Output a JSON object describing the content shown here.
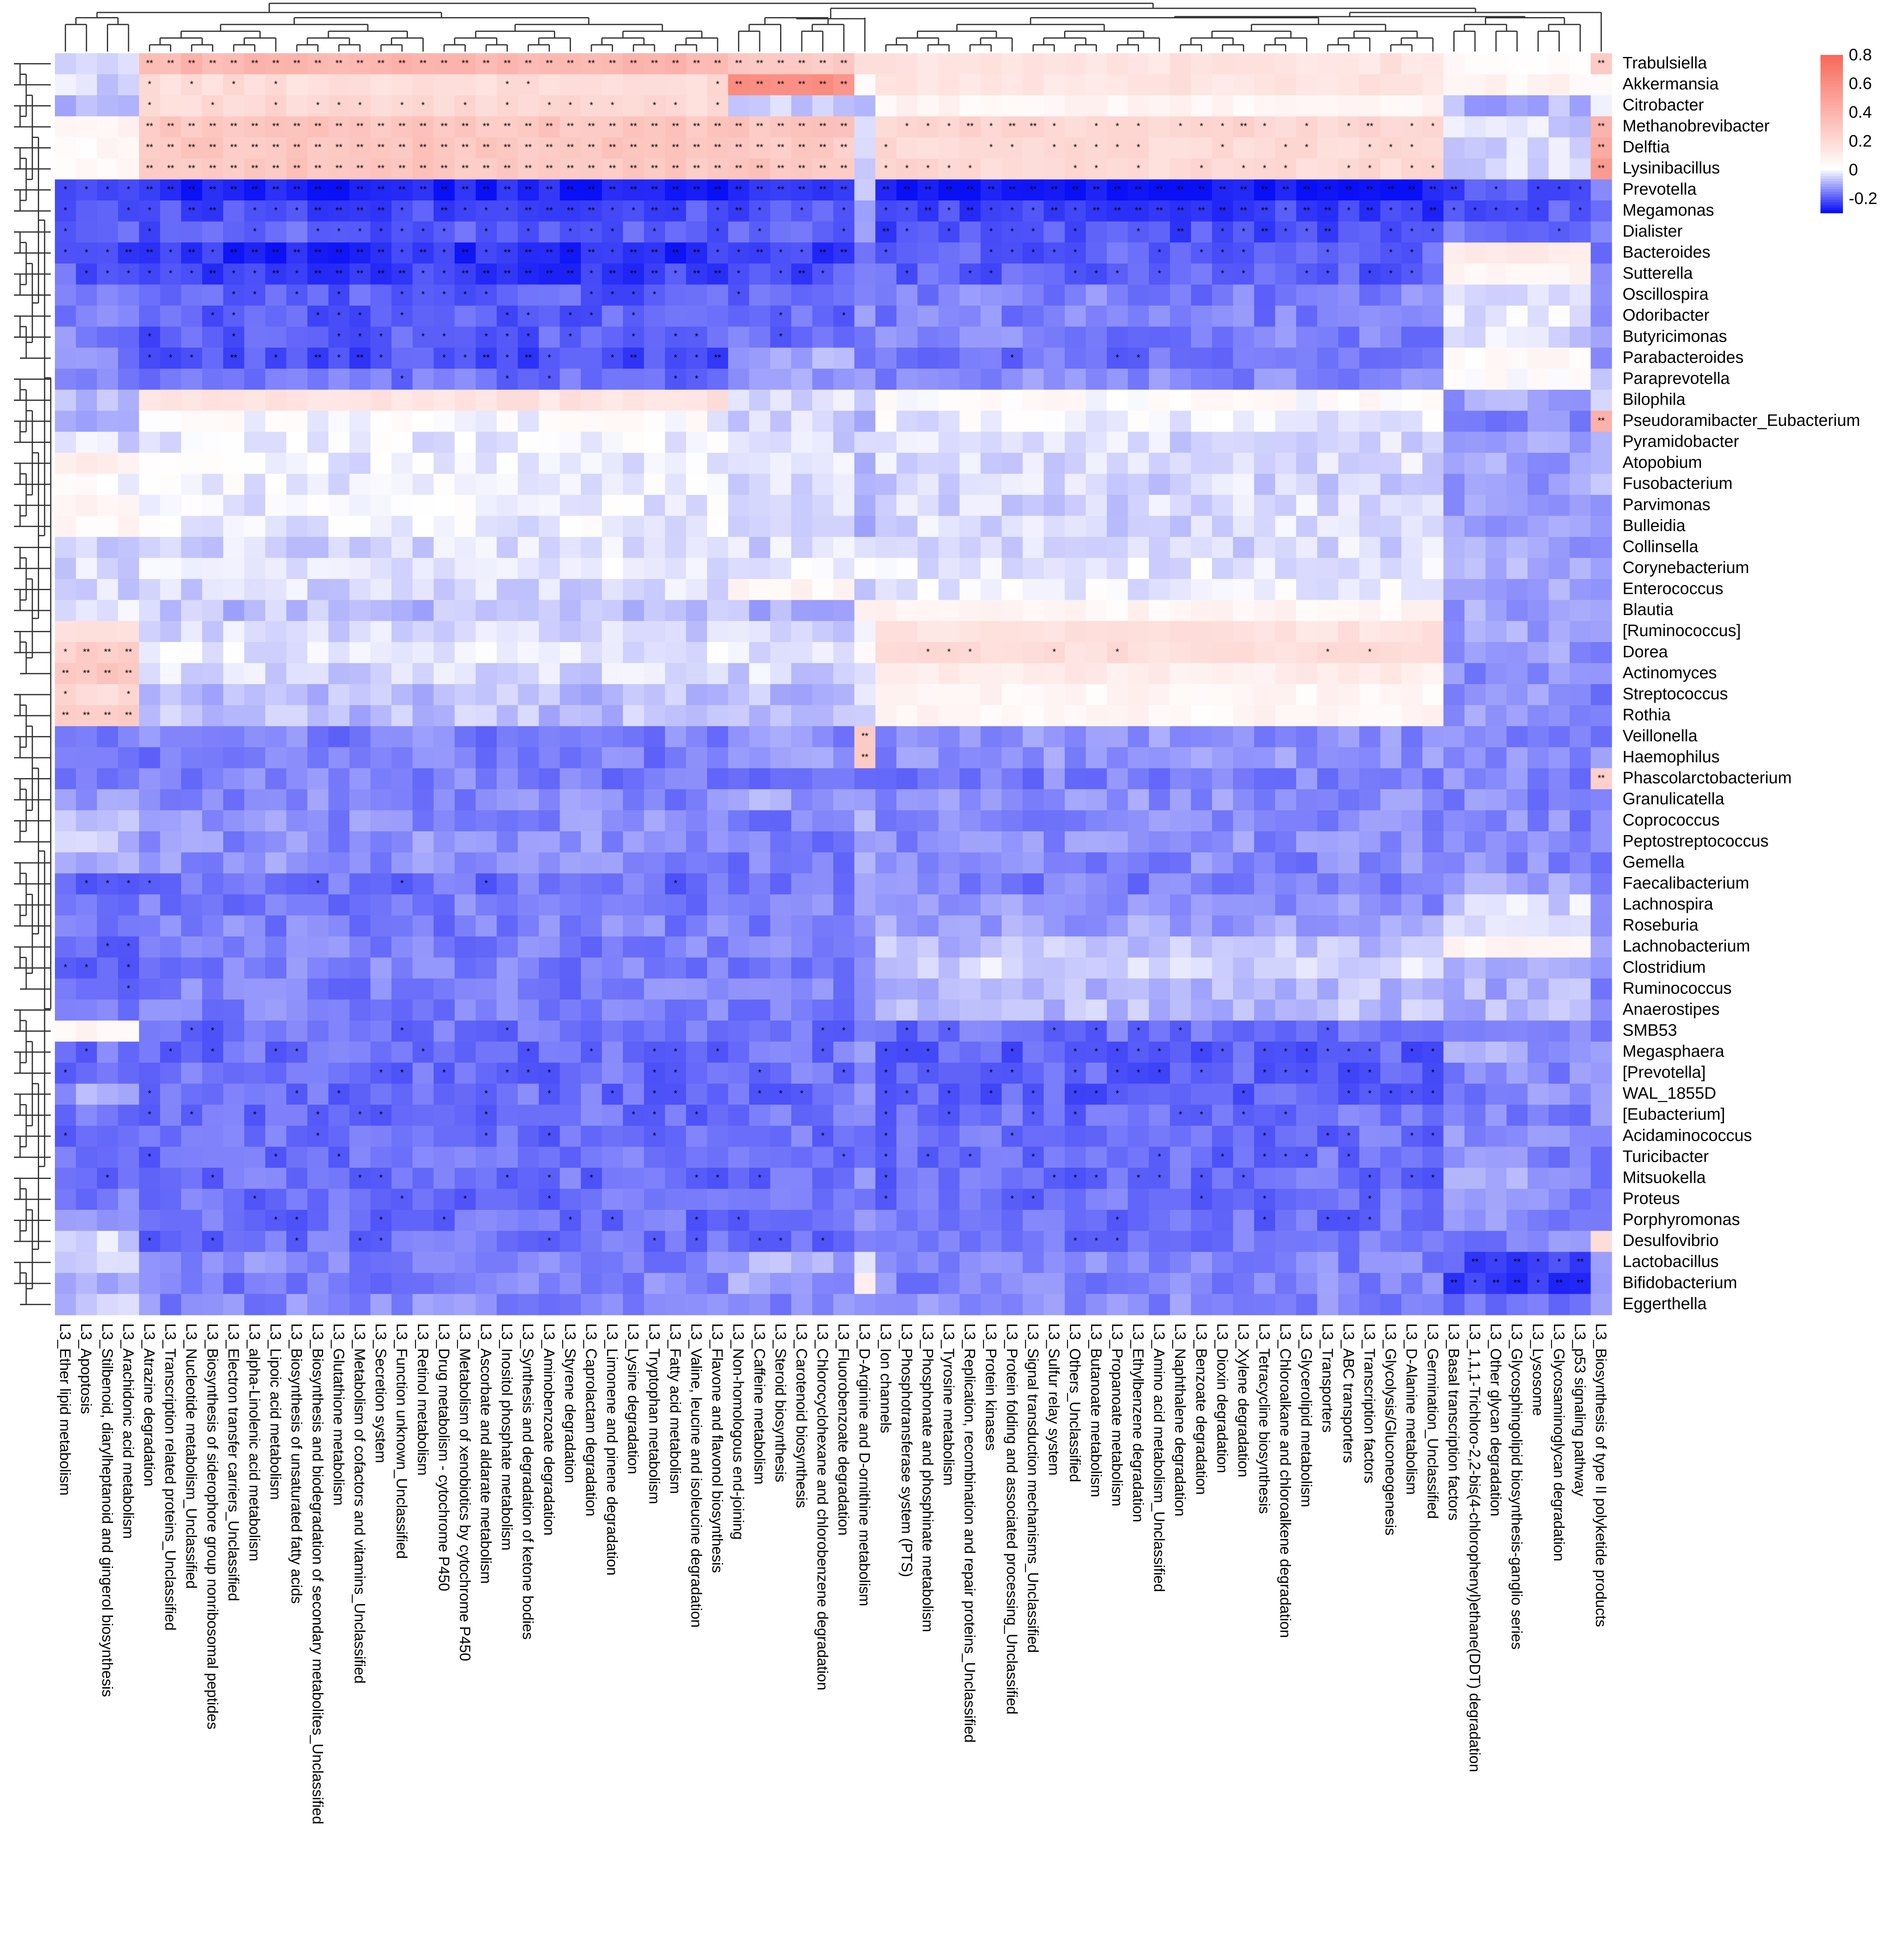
{
  "chart_data": {
    "type": "heatmap",
    "title": "",
    "xlabel": "",
    "ylabel": "",
    "rows": [
      "Trabulsiella",
      "Akkermansia",
      "Citrobacter",
      "Methanobrevibacter",
      "Delftia",
      "Lysinibacillus",
      "Prevotella",
      "Megamonas",
      "Dialister",
      "Bacteroides",
      "Sutterella",
      "Oscillospira",
      "Odoribacter",
      "Butyricimonas",
      "Parabacteroides",
      "Paraprevotella",
      "Bilophila",
      "Pseudoramibacter_Eubacterium",
      "Pyramidobacter",
      "Atopobium",
      "Fusobacterium",
      "Parvimonas",
      "Bulleidia",
      "Collinsella",
      "Corynebacterium",
      "Enterococcus",
      "Blautia",
      "[Ruminococcus]",
      "Dorea",
      "Actinomyces",
      "Streptococcus",
      "Rothia",
      "Veillonella",
      "Haemophilus",
      "Phascolarctobacterium",
      "Granulicatella",
      "Coprococcus",
      "Peptostreptococcus",
      "Gemella",
      "Faecalibacterium",
      "Lachnospira",
      "Roseburia",
      "Lachnobacterium",
      "Clostridium",
      "Ruminococcus",
      "Anaerostipes",
      "SMB53",
      "Megasphaera",
      "[Prevotella]",
      "WAL_1855D",
      "[Eubacterium]",
      "Acidaminococcus",
      "Turicibacter",
      "Mitsuokella",
      "Proteus",
      "Porphyromonas",
      "Desulfovibrio",
      "Lactobacillus",
      "Bifidobacterium",
      "Eggerthella"
    ],
    "columns": [
      "L3_Ether lipid metabolism",
      "L3_Apoptosis",
      "L3_Stilbenoid, diarylheptanoid and gingerol biosynthesis",
      "L3_Arachidonic acid metabolism",
      "L3_Atrazine degradation",
      "L3_Transcription related proteins_Unclassified",
      "L3_Nucleotide metabolism_Unclassified",
      "L3_Biosynthesis of siderophore group nonribosomal peptides",
      "L3_Electron transfer carriers_Unclassified",
      "L3_alpha-Linolenic acid metabolism",
      "L3_Lipoic acid metabolism",
      "L3_Biosynthesis of unsaturated fatty acids",
      "L3_Biosynthesis and biodegradation of secondary metabolites_Unclassified",
      "L3_Glutathione metabolism",
      "L3_Metabolism of cofactors and vitamins_Unclassified",
      "L3_Secretion system",
      "L3_Function unknown_Unclassified",
      "L3_Retinol metabolism",
      "L3_Drug metabolism - cytochrome P450",
      "L3_Metabolism of xenobiotics by cytochrome P450",
      "L3_Ascorbate and aldarate metabolism",
      "L3_Inositol phosphate metabolism",
      "L3_Synthesis and degradation of ketone bodies",
      "L3_Aminobenzoate degradation",
      "L3_Styrene degradation",
      "L3_Caprolactam degradation",
      "L3_Limonene and pinene degradation",
      "L3_Lysine degradation",
      "L3_Tryptophan metabolism",
      "L3_Fatty acid metabolism",
      "L3_Valine, leucine and isoleucine degradation",
      "L3_Flavone and flavonol biosynthesis",
      "L3_Non-homologous end-joining",
      "L3_Caffeine metabolism",
      "L3_Steroid biosynthesis",
      "L3_Carotenoid biosynthesis",
      "L3_Chlorocyclohexane and chlorobenzene degradation",
      "L3_Fluorobenzoate degradation",
      "L3_D-Arginine and D-ornithine metabolism",
      "L3_Ion channels",
      "L3_Phosphotransferase system (PTS)",
      "L3_Phosphonate and phosphinate metabolism",
      "L3_Tyrosine metabolism",
      "L3_Replication, recombination and repair proteins_Unclassified",
      "L3_Protein kinases",
      "L3_Protein folding and associated processing_Unclassified",
      "L3_Signal transduction mechanisms_Unclassified",
      "L3_Sulfur relay system",
      "L3_Others_Unclassified",
      "L3_Butanoate metabolism",
      "L3_Propanoate metabolism",
      "L3_Ethylbenzene degradation",
      "L3_Amino acid metabolism_Unclassified",
      "L3_Naphthalene degradation",
      "L3_Benzoate degradation",
      "L3_Dioxin degradation",
      "L3_Xylene degradation",
      "L3_Tetracycline biosynthesis",
      "L3_Chloroalkane and chloroalkene degradation",
      "L3_Glycerolipid metabolism",
      "L3_Transporters",
      "L3_ABC transporters",
      "L3_Transcription factors",
      "L3_Glycolysis/Gluconeogenesis",
      "L3_D-Alanine metabolism",
      "L3_Germination_Unclassified",
      "L3_Basal transcription factors",
      "L3_1,1,1-Trichloro-2,2-bis(4-chlorophenyl)ethane(DDT) degradation",
      "L3_Other glycan degradation",
      "L3_Glycosphingolipid biosynthesis-ganglio series",
      "L3_Lysosome",
      "L3_Glycosaminoglycan degradation",
      "L3_p53 signaling pathway",
      "L3_Biosynthesis of type II polyketide products"
    ],
    "column_blocks": [
      [
        0,
        3
      ],
      [
        4,
        31
      ],
      [
        32,
        37
      ],
      [
        38,
        38
      ],
      [
        39,
        65
      ],
      [
        66,
        72
      ],
      [
        73,
        73
      ]
    ],
    "block_profiles": [
      {
        "name": "Trabulsiella",
        "values": [
          -0.02,
          0.38,
          0.28,
          0.2,
          0.15,
          0.02,
          0.3
        ]
      },
      {
        "name": "Akkermansia",
        "values": [
          -0.05,
          0.18,
          0.6,
          0.05,
          0.15,
          0.05,
          0.05
        ]
      },
      {
        "name": "Citrobacter",
        "values": [
          -0.08,
          0.2,
          -0.05,
          -0.1,
          0.05,
          -0.1,
          -0.05
        ]
      },
      {
        "name": "Methanobrevibacter",
        "values": [
          0.05,
          0.3,
          0.3,
          -0.05,
          0.22,
          -0.05,
          0.4
        ]
      },
      {
        "name": "Delftia",
        "values": [
          0.03,
          0.3,
          0.28,
          -0.05,
          0.2,
          -0.05,
          0.45
        ]
      },
      {
        "name": "Lysinibacillus",
        "values": [
          0.02,
          0.3,
          0.3,
          -0.05,
          0.2,
          -0.05,
          0.5
        ]
      },
      {
        "name": "Prevotella",
        "values": [
          -0.24,
          -0.28,
          -0.26,
          -0.1,
          -0.3,
          -0.22,
          -0.18
        ]
      },
      {
        "name": "Megamonas",
        "values": [
          -0.2,
          -0.22,
          -0.22,
          -0.12,
          -0.24,
          -0.2,
          -0.15
        ]
      },
      {
        "name": "Dialister",
        "values": [
          -0.2,
          -0.2,
          -0.2,
          -0.15,
          -0.22,
          -0.18,
          -0.15
        ]
      },
      {
        "name": "Bacteroides",
        "values": [
          -0.22,
          -0.26,
          -0.24,
          -0.15,
          -0.2,
          0.1,
          -0.15
        ]
      },
      {
        "name": "Sutterella",
        "values": [
          -0.2,
          -0.24,
          -0.22,
          -0.15,
          -0.2,
          0.05,
          -0.15
        ]
      },
      {
        "name": "Oscillospira",
        "values": [
          -0.18,
          -0.2,
          -0.18,
          -0.15,
          -0.16,
          -0.05,
          -0.15
        ]
      },
      {
        "name": "Odoribacter",
        "values": [
          -0.16,
          -0.2,
          -0.18,
          -0.15,
          -0.16,
          -0.03,
          -0.15
        ]
      },
      {
        "name": "Butyricimonas",
        "values": [
          -0.16,
          -0.2,
          -0.18,
          -0.15,
          -0.16,
          -0.05,
          -0.15
        ]
      },
      {
        "name": "Parabacteroides",
        "values": [
          -0.15,
          -0.22,
          -0.1,
          -0.15,
          -0.18,
          0.02,
          -0.15
        ]
      },
      {
        "name": "Paraprevotella",
        "values": [
          -0.15,
          -0.18,
          -0.12,
          -0.15,
          -0.15,
          0.02,
          -0.1
        ]
      },
      {
        "name": "Bilophila",
        "values": [
          -0.1,
          0.15,
          -0.05,
          -0.08,
          0.02,
          -0.12,
          -0.05
        ]
      },
      {
        "name": "Pseudoramibacter_Eubacterium",
        "values": [
          -0.1,
          0.0,
          -0.05,
          -0.08,
          -0.02,
          -0.15,
          0.45
        ]
      },
      {
        "name": "Pyramidobacter",
        "values": [
          -0.05,
          -0.02,
          -0.05,
          -0.08,
          -0.05,
          -0.12,
          -0.1
        ]
      },
      {
        "name": "Atopobium",
        "values": [
          0.1,
          -0.02,
          -0.05,
          -0.08,
          -0.05,
          -0.12,
          -0.1
        ]
      },
      {
        "name": "Fusobacterium",
        "values": [
          0.0,
          -0.02,
          -0.05,
          -0.08,
          -0.05,
          -0.12,
          -0.1
        ]
      },
      {
        "name": "Parvimonas",
        "values": [
          0.05,
          -0.02,
          -0.05,
          -0.08,
          -0.05,
          -0.12,
          -0.1
        ]
      },
      {
        "name": "Bulleidia",
        "values": [
          0.05,
          -0.02,
          -0.05,
          -0.08,
          -0.05,
          -0.12,
          -0.1
        ]
      },
      {
        "name": "Collinsella",
        "values": [
          -0.05,
          -0.05,
          -0.05,
          -0.05,
          -0.05,
          -0.12,
          -0.12
        ]
      },
      {
        "name": "Corynebacterium",
        "values": [
          -0.05,
          -0.03,
          -0.03,
          0.0,
          -0.03,
          -0.1,
          -0.12
        ]
      },
      {
        "name": "Enterococcus",
        "values": [
          -0.05,
          -0.05,
          0.05,
          -0.05,
          -0.02,
          -0.12,
          -0.12
        ]
      },
      {
        "name": "Blautia",
        "values": [
          -0.05,
          -0.08,
          -0.1,
          0.05,
          0.05,
          -0.12,
          -0.15
        ]
      },
      {
        "name": "[Ruminococcus]",
        "values": [
          0.2,
          -0.05,
          -0.05,
          0.0,
          0.15,
          -0.12,
          -0.15
        ]
      },
      {
        "name": "Dorea",
        "values": [
          0.25,
          -0.03,
          -0.05,
          0.0,
          0.18,
          -0.12,
          -0.15
        ]
      },
      {
        "name": "Actinomyces",
        "values": [
          0.3,
          -0.05,
          -0.05,
          -0.05,
          0.1,
          -0.14,
          -0.15
        ]
      },
      {
        "name": "Streptococcus",
        "values": [
          0.2,
          -0.08,
          -0.08,
          -0.05,
          0.05,
          -0.14,
          -0.15
        ]
      },
      {
        "name": "Rothia",
        "values": [
          0.25,
          -0.08,
          -0.08,
          -0.05,
          0.05,
          -0.14,
          -0.15
        ]
      },
      {
        "name": "Veillonella",
        "values": [
          -0.15,
          -0.16,
          -0.14,
          0.3,
          -0.14,
          -0.15,
          -0.15
        ]
      },
      {
        "name": "Haemophilus",
        "values": [
          -0.15,
          -0.16,
          -0.14,
          0.3,
          -0.14,
          -0.15,
          -0.15
        ]
      },
      {
        "name": "Phascolarctobacterium",
        "values": [
          -0.16,
          -0.16,
          -0.16,
          -0.15,
          -0.16,
          -0.15,
          0.25
        ]
      },
      {
        "name": "Granulicatella",
        "values": [
          -0.12,
          -0.15,
          -0.12,
          -0.12,
          -0.14,
          -0.15,
          -0.15
        ]
      },
      {
        "name": "Coprococcus",
        "values": [
          -0.1,
          -0.14,
          -0.16,
          -0.12,
          -0.14,
          -0.15,
          -0.15
        ]
      },
      {
        "name": "Peptostreptococcus",
        "values": [
          -0.08,
          -0.14,
          -0.16,
          -0.12,
          -0.14,
          -0.15,
          -0.15
        ]
      },
      {
        "name": "Gemella",
        "values": [
          -0.1,
          -0.14,
          -0.16,
          -0.12,
          -0.15,
          -0.15,
          -0.15
        ]
      },
      {
        "name": "Faecalibacterium",
        "values": [
          -0.2,
          -0.18,
          -0.18,
          -0.15,
          -0.16,
          -0.12,
          -0.15
        ]
      },
      {
        "name": "Lachnospira",
        "values": [
          -0.18,
          -0.16,
          -0.16,
          -0.15,
          -0.14,
          -0.05,
          -0.15
        ]
      },
      {
        "name": "Roseburia",
        "values": [
          -0.18,
          -0.16,
          -0.16,
          -0.15,
          -0.12,
          -0.05,
          -0.15
        ]
      },
      {
        "name": "Lachnobacterium",
        "values": [
          -0.18,
          -0.16,
          -0.16,
          -0.15,
          -0.08,
          0.05,
          -0.15
        ]
      },
      {
        "name": "Clostridium",
        "values": [
          -0.18,
          -0.16,
          -0.16,
          -0.15,
          -0.05,
          -0.1,
          -0.15
        ]
      },
      {
        "name": "Ruminococcus",
        "values": [
          -0.18,
          -0.16,
          -0.16,
          -0.15,
          -0.08,
          -0.1,
          -0.15
        ]
      },
      {
        "name": "Anaerostipes",
        "values": [
          -0.18,
          -0.16,
          -0.16,
          -0.15,
          -0.08,
          -0.1,
          -0.15
        ]
      },
      {
        "name": "SMB53",
        "values": [
          0.05,
          -0.18,
          -0.18,
          -0.15,
          -0.18,
          -0.15,
          -0.15
        ]
      },
      {
        "name": "Megasphaera",
        "values": [
          -0.18,
          -0.18,
          -0.18,
          -0.15,
          -0.2,
          -0.12,
          -0.15
        ]
      },
      {
        "name": "[Prevotella]",
        "values": [
          -0.18,
          -0.18,
          -0.18,
          -0.15,
          -0.2,
          -0.15,
          -0.15
        ]
      },
      {
        "name": "WAL_1855D",
        "values": [
          -0.12,
          -0.18,
          -0.18,
          -0.15,
          -0.2,
          -0.15,
          -0.15
        ]
      },
      {
        "name": "[Eubacterium]",
        "values": [
          -0.18,
          -0.18,
          -0.18,
          -0.15,
          -0.18,
          -0.15,
          -0.15
        ]
      },
      {
        "name": "Acidaminococcus",
        "values": [
          -0.18,
          -0.18,
          -0.18,
          -0.15,
          -0.18,
          -0.15,
          -0.15
        ]
      },
      {
        "name": "Turicibacter",
        "values": [
          -0.18,
          -0.18,
          -0.18,
          -0.15,
          -0.18,
          -0.15,
          -0.15
        ]
      },
      {
        "name": "Mitsuokella",
        "values": [
          -0.18,
          -0.18,
          -0.18,
          -0.15,
          -0.18,
          -0.1,
          -0.15
        ]
      },
      {
        "name": "Proteus",
        "values": [
          -0.16,
          -0.18,
          -0.18,
          -0.15,
          -0.18,
          -0.15,
          -0.15
        ]
      },
      {
        "name": "Porphyromonas",
        "values": [
          -0.15,
          -0.18,
          -0.18,
          -0.15,
          -0.18,
          -0.15,
          -0.15
        ]
      },
      {
        "name": "Desulfovibrio",
        "values": [
          -0.05,
          -0.18,
          -0.18,
          -0.15,
          -0.18,
          -0.15,
          0.2
        ]
      },
      {
        "name": "Lactobacillus",
        "values": [
          -0.05,
          -0.15,
          -0.1,
          -0.05,
          -0.15,
          -0.22,
          -0.15
        ]
      },
      {
        "name": "Bifidobacterium",
        "values": [
          -0.1,
          -0.16,
          -0.12,
          0.05,
          -0.15,
          -0.24,
          -0.15
        ]
      },
      {
        "name": "Eggerthella",
        "values": [
          -0.08,
          -0.15,
          -0.15,
          -0.1,
          -0.15,
          -0.18,
          -0.15
        ]
      }
    ],
    "significance_symbols": [
      "*",
      "**"
    ],
    "colorbar": {
      "ticks": [
        0.8,
        0.6,
        0.4,
        0.2,
        0,
        -0.2
      ],
      "range": [
        -0.3,
        0.8
      ],
      "colors": {
        "low": "#0a10f5",
        "mid": "#ffffff",
        "high": "#f86a5b"
      }
    },
    "dendrograms": {
      "rows": "left",
      "columns": "top"
    },
    "grid": false,
    "legend": "top-right"
  }
}
